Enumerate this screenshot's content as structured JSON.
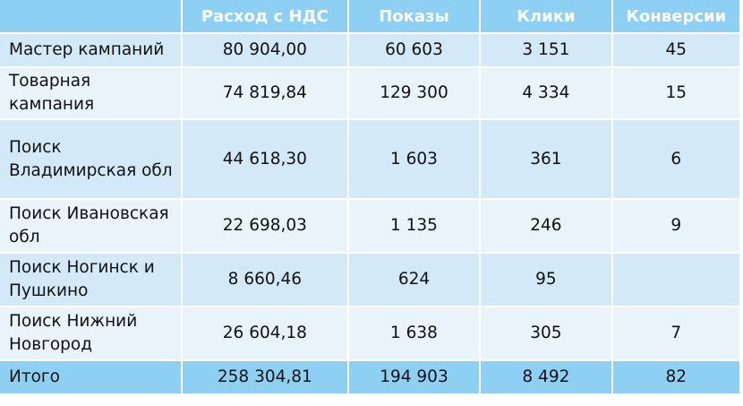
{
  "table": {
    "headers": [
      "",
      "Расход с НДС",
      "Показы",
      "Клики",
      "Конверсии"
    ],
    "rows": [
      [
        "Мастер кампаний",
        "80 904,00",
        "60 603",
        "3 151",
        "45"
      ],
      [
        "Товарная кампания",
        "74 819,84",
        "129 300",
        "4 334",
        "15"
      ],
      [
        "Поиск Владимирская обл",
        "44 618,30",
        "1 603",
        "361",
        "6"
      ],
      [
        "Поиск Ивановская обл",
        "22 698,03",
        "1 135",
        "246",
        "9"
      ],
      [
        "Поиск Ногинск и Пушкино",
        "8 660,46",
        "624",
        "95",
        ""
      ],
      [
        "Поиск Нижний Новгород",
        "26 604,18",
        "1 638",
        "305",
        "7"
      ]
    ],
    "total": [
      "Итого",
      "258 304,81",
      "194 903",
      "8 492",
      "82"
    ]
  },
  "colors": {
    "header_bg": "#8ed0f3",
    "row_odd_bg": "#d3e9f7",
    "row_even_bg": "#e8f3fa",
    "header_text": "#ffffff"
  }
}
